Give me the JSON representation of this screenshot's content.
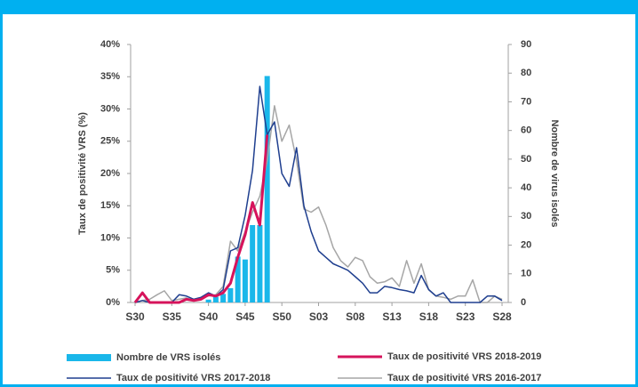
{
  "chart_data": {
    "type": "combo",
    "categories": [
      "S30",
      null,
      null,
      null,
      null,
      "S35",
      null,
      null,
      null,
      null,
      "S40",
      null,
      null,
      null,
      null,
      "S45",
      null,
      null,
      null,
      null,
      "S50",
      null,
      null,
      null,
      null,
      "S03",
      null,
      null,
      null,
      null,
      "S08",
      null,
      null,
      null,
      null,
      "S13",
      null,
      null,
      null,
      null,
      "S18",
      null,
      null,
      null,
      null,
      "S23",
      null,
      null,
      null,
      null,
      "S28"
    ],
    "ylabel": "Taux de positivité VRS (%)",
    "y2label": "Nombre de virus isolés",
    "ylim": [
      0,
      40
    ],
    "yticks": [
      {
        "value": 0,
        "label": "0%"
      },
      {
        "value": 5,
        "label": "5%"
      },
      {
        "value": 10,
        "label": "10%"
      },
      {
        "value": 15,
        "label": "15%"
      },
      {
        "value": 20,
        "label": "20%"
      },
      {
        "value": 25,
        "label": "25%"
      },
      {
        "value": 30,
        "label": "30%"
      },
      {
        "value": 35,
        "label": "35%"
      },
      {
        "value": 40,
        "label": "40%"
      }
    ],
    "y2lim": [
      0,
      90
    ],
    "y2ticks": [
      0,
      10,
      20,
      30,
      40,
      50,
      60,
      70,
      80,
      90
    ],
    "series": [
      {
        "name": "Nombre de VRS isolés",
        "type": "bar",
        "axis": "y2",
        "color": "#1ab7ea",
        "values": [
          null,
          null,
          null,
          null,
          null,
          null,
          null,
          null,
          null,
          null,
          1,
          2,
          3,
          5,
          16,
          15,
          27,
          27,
          79,
          null,
          null,
          null,
          null,
          null,
          null,
          null,
          null,
          null,
          null,
          null,
          null,
          null,
          null,
          null,
          null,
          null,
          null,
          null,
          null,
          null,
          null,
          null,
          null,
          null,
          null,
          null,
          null,
          null,
          null,
          null,
          null
        ]
      },
      {
        "name": "Taux de positivité VRS 2018-2019",
        "type": "line",
        "color": "#d6135b",
        "values": [
          0,
          1.5,
          0,
          0,
          0,
          0,
          0,
          0.5,
          0.3,
          0.5,
          1.2,
          1,
          1.5,
          3,
          7,
          10.5,
          15.5,
          12,
          26,
          null,
          null,
          null,
          null,
          null,
          null,
          null,
          null,
          null,
          null,
          null,
          null,
          null,
          null,
          null,
          null,
          null,
          null,
          null,
          null,
          null,
          null,
          null,
          null,
          null,
          null,
          null,
          null,
          null,
          null,
          null,
          null
        ]
      },
      {
        "name": "Taux de positivité VRS 2017-2018",
        "type": "line",
        "color": "#1f3f8f",
        "values": [
          0,
          0.3,
          0,
          0,
          0,
          0,
          1.2,
          1,
          0.5,
          0.8,
          1.5,
          1,
          2,
          8,
          8.5,
          13.5,
          20.5,
          33.5,
          26,
          28,
          20,
          18,
          24,
          15,
          11,
          8,
          7,
          6,
          5.5,
          5,
          4,
          3,
          1.5,
          1.5,
          2.5,
          2.3,
          2,
          1.8,
          1.5,
          4.2,
          2,
          1,
          1.5,
          0,
          0,
          0,
          0,
          0,
          1,
          1,
          0.3
        ]
      },
      {
        "name": "Taux de positivité VRS 2016-2017",
        "type": "line",
        "color": "#a6a6a6",
        "values": [
          0,
          0.3,
          0.5,
          1.2,
          1.8,
          0.3,
          0.5,
          0.7,
          0.3,
          0.7,
          1,
          1.2,
          2.5,
          9.5,
          8,
          11,
          14,
          16.5,
          22,
          30.5,
          25,
          27.5,
          22,
          14.5,
          14,
          14.8,
          12,
          8.5,
          6.5,
          5.5,
          7,
          6.5,
          4,
          3,
          3.2,
          3.8,
          2.5,
          6.5,
          3,
          6,
          2,
          1,
          0.8,
          0.5,
          1,
          1,
          3.5,
          0,
          0,
          1,
          0.5
        ]
      }
    ]
  }
}
